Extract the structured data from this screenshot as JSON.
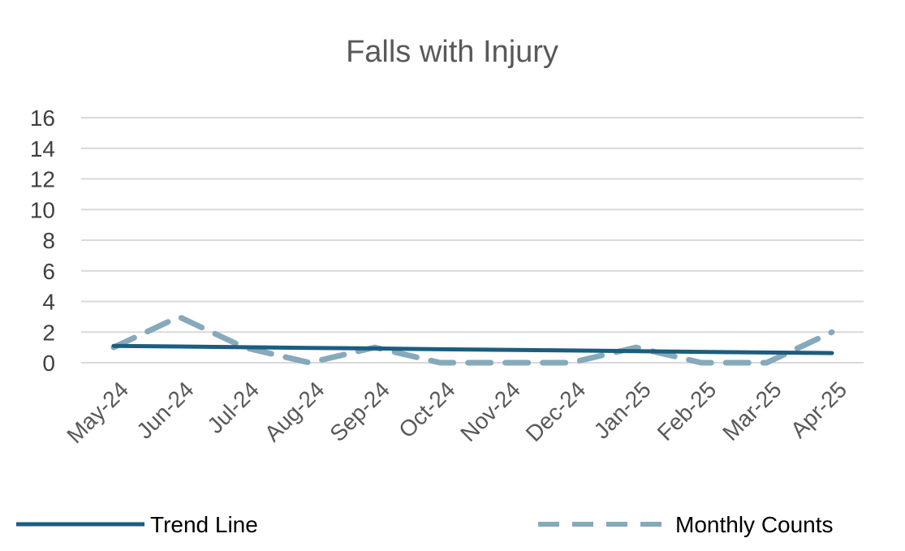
{
  "chart_data": {
    "type": "line",
    "title": "Falls with Injury",
    "categories": [
      "May-24",
      "Jun-24",
      "Jul-24",
      "Aug-24",
      "Sep-24",
      "Oct-24",
      "Nov-24",
      "Dec-24",
      "Jan-25",
      "Feb-25",
      "Mar-25",
      "Apr-25"
    ],
    "ylim": [
      0,
      16
    ],
    "yticks": [
      "0",
      "2",
      "4",
      "6",
      "8",
      "10",
      "12",
      "14",
      "16"
    ],
    "grid": true,
    "legend_position": "bottom",
    "series": [
      {
        "name": "Trend Line",
        "style": "solid",
        "color": "#1c5d7f",
        "values": [
          1.1,
          1.06,
          1.01,
          0.97,
          0.93,
          0.88,
          0.84,
          0.8,
          0.76,
          0.71,
          0.67,
          0.63
        ]
      },
      {
        "name": "Monthly Counts",
        "style": "dashed",
        "color": "#86a9bb",
        "values": [
          1,
          3,
          1,
          0,
          1,
          0,
          0,
          0,
          1,
          0,
          0,
          2
        ]
      }
    ]
  }
}
